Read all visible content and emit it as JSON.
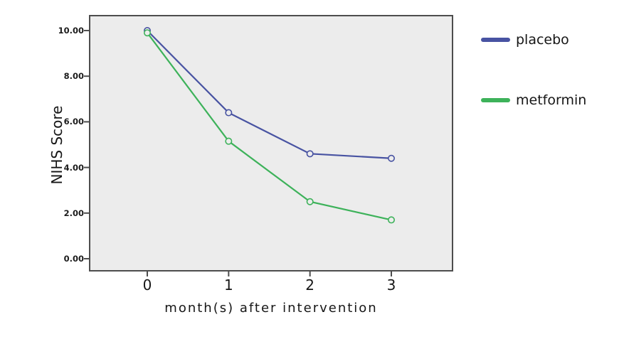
{
  "chart_data": {
    "type": "line",
    "title": "",
    "xlabel": "month(s) after intervention",
    "ylabel": "NIHS Score",
    "categories": [
      "0",
      "1",
      "2",
      "3"
    ],
    "x": [
      0,
      1,
      2,
      3
    ],
    "series": [
      {
        "name": "placebo",
        "color": "#4853a2",
        "values": [
          10.0,
          6.4,
          4.6,
          4.4
        ]
      },
      {
        "name": "metformin",
        "color": "#3db25a",
        "values": [
          9.9,
          5.15,
          2.5,
          1.7
        ]
      }
    ],
    "ylim": [
      0,
      10
    ],
    "yticks": [
      0,
      2,
      4,
      6,
      8,
      10
    ],
    "ytick_labels": [
      "0.00",
      "2.00",
      "4.00",
      "6.00",
      "8.00",
      "10.00"
    ],
    "grid": false,
    "legend_position": "right",
    "marker": "open-circle",
    "plot_bg": "#ececec",
    "frame_color": "#4d4d4d"
  }
}
